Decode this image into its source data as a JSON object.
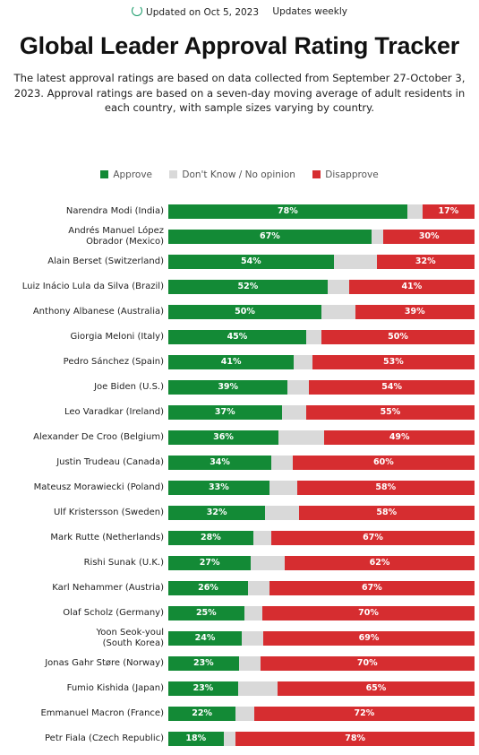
{
  "header": {
    "updated": "Updated on Oct 5, 2023",
    "frequency": "Updates weekly",
    "icon": "refresh-icon"
  },
  "colors": {
    "approve": "#138a36",
    "dont_know": "#d9d9d9",
    "disapprove": "#d62d30"
  },
  "chart_data": {
    "type": "bar",
    "orientation": "horizontal",
    "stacked": true,
    "title": "Global Leader Approval Rating Tracker",
    "subtitle": "The latest approval ratings are based on data collected from September 27-October 3, 2023. Approval ratings are based on a seven-day moving average of adult residents in each country, with sample sizes varying by country.",
    "legend_position": "top",
    "xlim": [
      0,
      100
    ],
    "categories": [
      [
        "Narendra Modi (India)"
      ],
      [
        "Andrés Manuel López",
        "Obrador (Mexico)"
      ],
      [
        "Alain Berset (Switzerland)"
      ],
      [
        "Luiz Inácio Lula da Silva (Brazil)"
      ],
      [
        "Anthony Albanese (Australia)"
      ],
      [
        "Giorgia Meloni (Italy)"
      ],
      [
        "Pedro Sánchez (Spain)"
      ],
      [
        "Joe Biden (U.S.)"
      ],
      [
        "Leo Varadkar (Ireland)"
      ],
      [
        "Alexander De Croo (Belgium)"
      ],
      [
        "Justin Trudeau (Canada)"
      ],
      [
        "Mateusz Morawiecki (Poland)"
      ],
      [
        "Ulf Kristersson (Sweden)"
      ],
      [
        "Mark Rutte (Netherlands)"
      ],
      [
        "Rishi Sunak (U.K.)"
      ],
      [
        "Karl Nehammer (Austria)"
      ],
      [
        "Olaf Scholz (Germany)"
      ],
      [
        "Yoon Seok-youl",
        "(South Korea)"
      ],
      [
        "Jonas Gahr Støre (Norway)"
      ],
      [
        "Fumio Kishida (Japan)"
      ],
      [
        "Emmanuel Macron (France)"
      ],
      [
        "Petr Fiala (Czech Republic)"
      ]
    ],
    "series": [
      {
        "name": "Approve",
        "values": [
          78,
          67,
          54,
          52,
          50,
          45,
          41,
          39,
          37,
          36,
          34,
          33,
          32,
          28,
          27,
          26,
          25,
          24,
          23,
          23,
          22,
          18
        ]
      },
      {
        "name": "Don't Know / No opinion",
        "values": [
          5,
          4,
          14,
          7,
          11,
          5,
          6,
          7,
          8,
          15,
          7,
          9,
          11,
          6,
          11,
          7,
          6,
          7,
          7,
          13,
          6,
          4
        ]
      },
      {
        "name": "Disapprove",
        "values": [
          17,
          30,
          32,
          41,
          39,
          50,
          53,
          54,
          55,
          49,
          60,
          58,
          58,
          67,
          62,
          67,
          70,
          69,
          70,
          65,
          72,
          78
        ]
      }
    ]
  }
}
